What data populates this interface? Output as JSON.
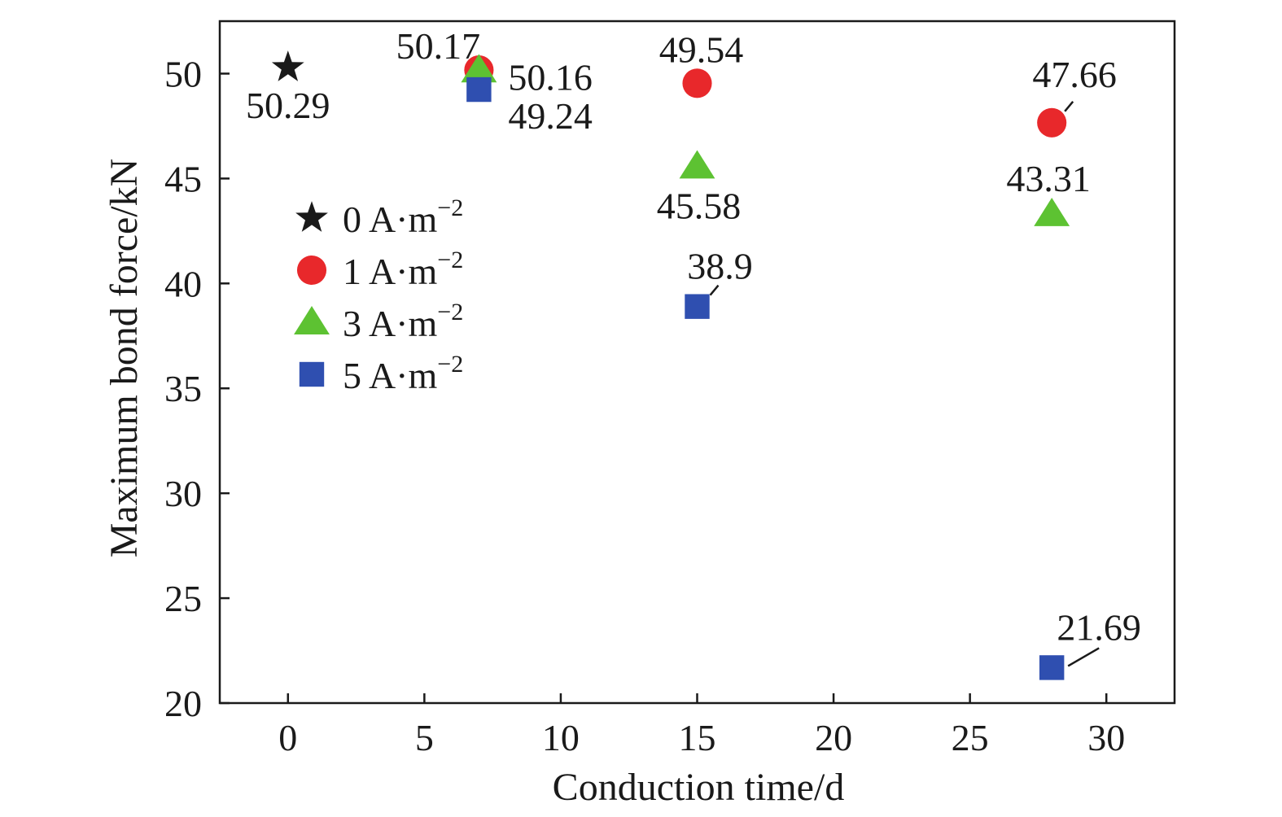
{
  "chart_data": {
    "type": "scatter",
    "xlabel": "Conduction time/d",
    "ylabel": "Maximum bond force/kN",
    "xlim": [
      -2.5,
      32.5
    ],
    "ylim": [
      20,
      52.5
    ],
    "xticks": [
      0,
      5,
      10,
      15,
      20,
      25,
      30
    ],
    "yticks": [
      20,
      25,
      30,
      35,
      40,
      45,
      50
    ],
    "grid": false,
    "legend": {
      "position": "upper-left"
    },
    "series": [
      {
        "name": "0 A·m",
        "name_sup": "−2",
        "marker": "star",
        "color": "#1a1a1a",
        "points": [
          {
            "x": 0,
            "y": 50.29,
            "label": "50.29"
          }
        ]
      },
      {
        "name": "1 A·m",
        "name_sup": "−2",
        "marker": "circle",
        "color": "#e8282b",
        "points": [
          {
            "x": 7,
            "y": 50.17,
            "label": "50.17"
          },
          {
            "x": 15,
            "y": 49.54,
            "label": "49.54"
          },
          {
            "x": 28,
            "y": 47.66,
            "label": "47.66"
          }
        ]
      },
      {
        "name": "3 A·m",
        "name_sup": "−2",
        "marker": "triangle",
        "color": "#5dc232",
        "points": [
          {
            "x": 7,
            "y": 50.16,
            "label": "50.16"
          },
          {
            "x": 15,
            "y": 45.58,
            "label": "45.58"
          },
          {
            "x": 28,
            "y": 43.31,
            "label": "43.31"
          }
        ]
      },
      {
        "name": "5 A·m",
        "name_sup": "−2",
        "marker": "square",
        "color": "#2f4fb0",
        "points": [
          {
            "x": 7,
            "y": 49.24,
            "label": "49.24"
          },
          {
            "x": 15,
            "y": 38.9,
            "label": "38.9"
          },
          {
            "x": 28,
            "y": 21.69,
            "label": "21.69"
          }
        ]
      }
    ]
  }
}
